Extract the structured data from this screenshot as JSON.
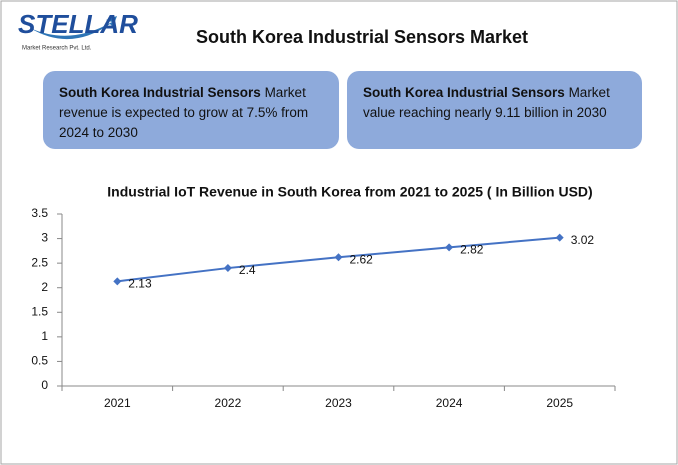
{
  "header": {
    "logo": "STELLAR",
    "tagline": "Market Research Pvt. Ltd.",
    "title": "South Korea Industrial Sensors Market"
  },
  "boxes": [
    {
      "bold": "South Korea Industrial Sensors",
      "text": "Market revenue is expected to grow at 7.5% from 2024 to 2030"
    },
    {
      "bold": "South Korea Industrial Sensors",
      "text": "Market value reaching nearly 9.11 billion in 2030"
    }
  ],
  "chart_data": {
    "type": "line",
    "title": "Industrial IoT Revenue in South Korea from 2021 to 2025 ( In Billion USD)",
    "categories": [
      "2021",
      "2022",
      "2023",
      "2024",
      "2025"
    ],
    "values": [
      2.13,
      2.4,
      2.62,
      2.82,
      3.02
    ],
    "color": "#4472c4",
    "ylim": [
      0,
      3.5
    ],
    "yticks": [
      0,
      0.5,
      1,
      1.5,
      2,
      2.5,
      3,
      3.5
    ],
    "grid": false,
    "data_labels": true
  }
}
